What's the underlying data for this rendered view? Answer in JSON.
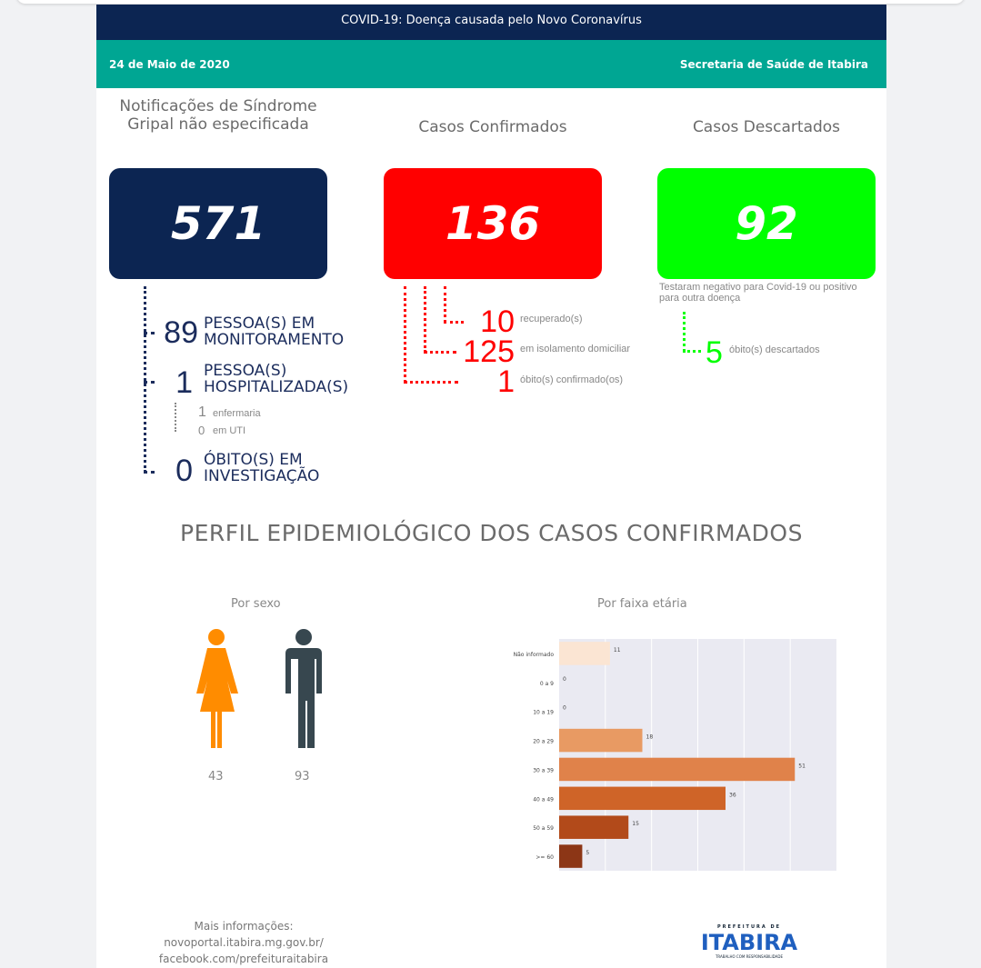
{
  "header": {
    "title": "COVID-19: Doença causada pelo Novo Coronavírus",
    "date": "24 de Maio de 2020",
    "source": "Secretaria de Saúde de Itabira"
  },
  "stats": {
    "notificacoes": {
      "title": "Notificações de Síndrome Gripal não especificada",
      "value": "571",
      "color": "#0c2552",
      "details": [
        {
          "value": "89",
          "label": "PESSOA(S) EM MONITORAMENTO"
        },
        {
          "value": "1",
          "label": "PESSOA(S) HOSPITALIZADA(S)"
        },
        {
          "value": "0",
          "label": "ÓBITO(S) EM INVESTIGAÇÃO"
        }
      ],
      "hospital": [
        {
          "value": "1",
          "label": "enfermaria"
        },
        {
          "value": "0",
          "label": "em UTI"
        }
      ]
    },
    "confirmados": {
      "title": "Casos Confirmados",
      "value": "136",
      "color": "#ff0000",
      "details": [
        {
          "value": "10",
          "label": "recuperado(s)"
        },
        {
          "value": "125",
          "label": "em isolamento domiciliar"
        },
        {
          "value": "1",
          "label": "óbito(s) confirmado(os)"
        }
      ]
    },
    "descartados": {
      "title": "Casos Descartados",
      "value": "92",
      "color": "#00ff00",
      "note": "Testaram negativo para Covid-19 ou positivo para outra doença",
      "details": [
        {
          "value": "5",
          "label": "óbito(s) descartados"
        }
      ]
    }
  },
  "section_title": "PERFIL EPIDEMIOLÓGICO DOS CASOS CONFIRMADOS",
  "sex": {
    "title": "Por sexo",
    "female": "43",
    "male": "93",
    "female_color": "#ff8c00",
    "male_color": "#37474f"
  },
  "chart_data": {
    "type": "bar",
    "orientation": "horizontal",
    "title": "Por faixa etária",
    "categories": [
      "Não informado",
      "0 a 9",
      "10 a 19",
      "20 a 29",
      "30 a 39",
      "40 a 49",
      "50 a 59",
      ">= 60"
    ],
    "values": [
      11,
      0,
      0,
      18,
      51,
      36,
      15,
      5
    ],
    "xlim": [
      0,
      60
    ],
    "grid": true,
    "colors": [
      "#fbe5d3",
      "#fdd0a2",
      "#fdae6b",
      "#e89a63",
      "#e0824a",
      "#cf6428",
      "#b24a1a",
      "#8c3616"
    ]
  },
  "footer": {
    "more": "Mais informações:",
    "site": "novoportal.itabira.mg.gov.br/",
    "facebook": "facebook.com/prefeituraitabira",
    "logo_top": "PREFEITURA DE",
    "logo": "ITABIRA",
    "logo_sub": "TRABALHO COM RESPONSABILIDADE"
  }
}
